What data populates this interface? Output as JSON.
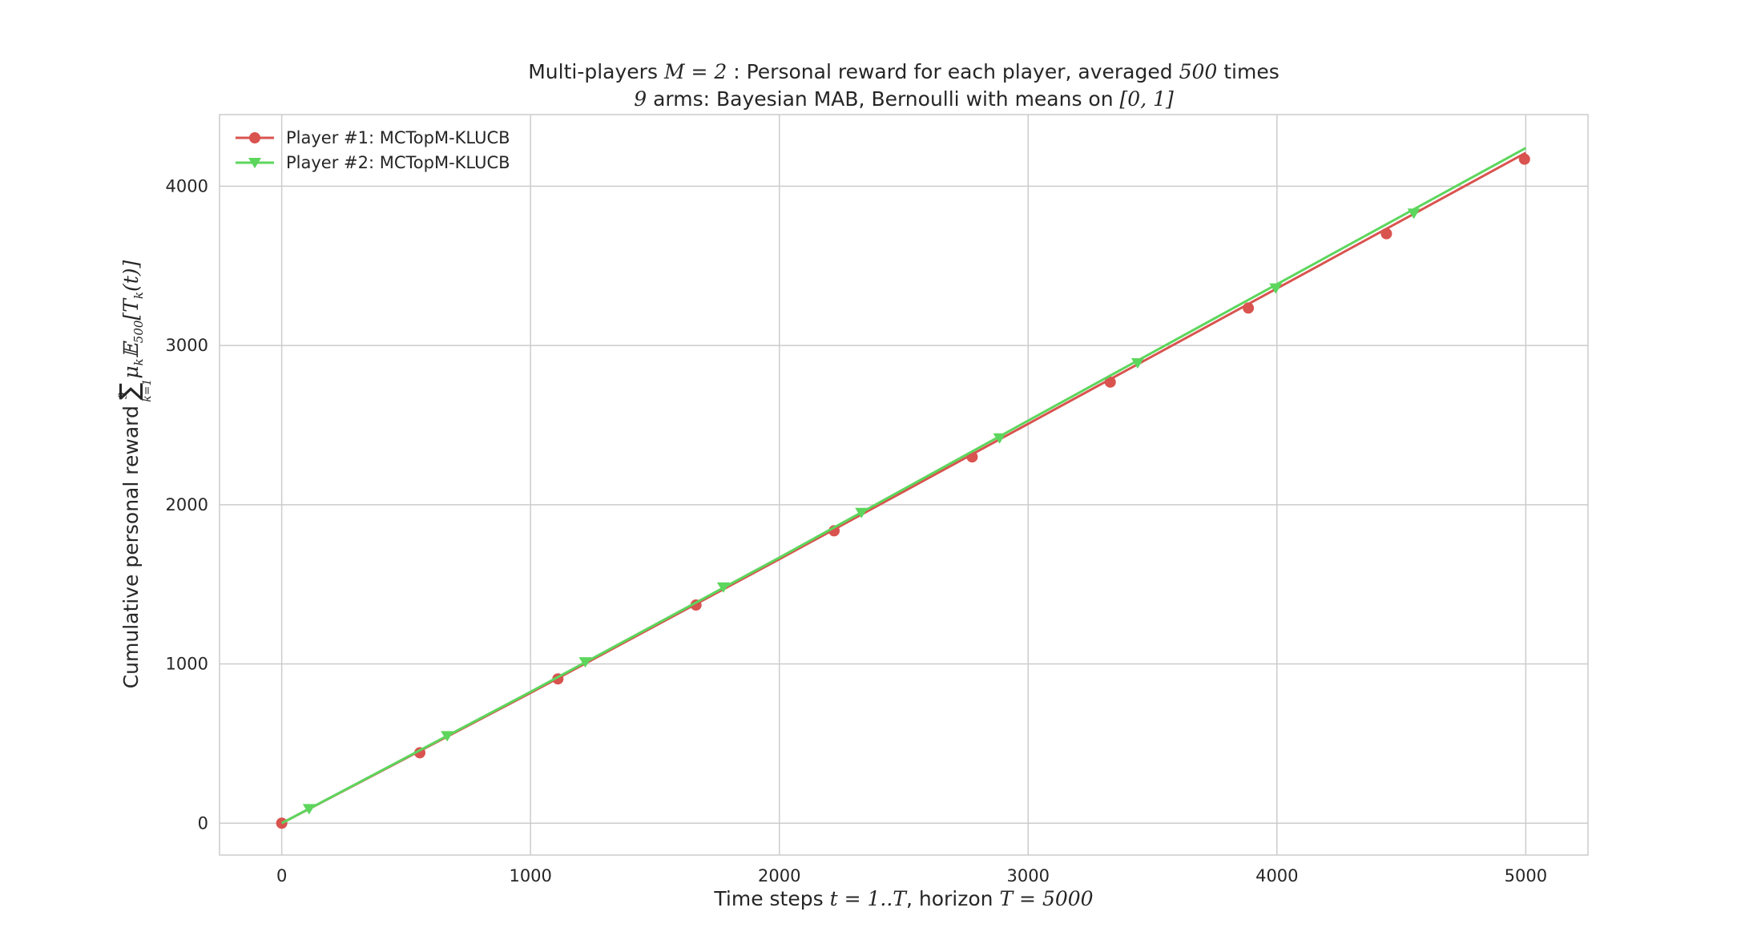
{
  "chart_data": {
    "type": "line",
    "title_line1": {
      "pre": "Multi-players ",
      "math1": "M = 2",
      "mid": " : Personal reward for each player, averaged ",
      "math2": "500",
      "post": " times"
    },
    "title_line2": {
      "math1": "9",
      "mid": " arms: Bayesian MAB, Bernoulli with means on ",
      "math2": "[0, 1]"
    },
    "xlabel": {
      "pre": "Time steps ",
      "math1": "t = 1..T",
      "mid": ", horizon ",
      "math2": "T = 5000"
    },
    "ylabel": {
      "text": "Cumulative personal reward ",
      "sum_top": "9",
      "sum_symbol": "∑",
      "sum_bottom": "k=1",
      "math": "μ",
      "math_sub": "k",
      "math2": "𝔼",
      "math2_sub": "500",
      "math3": "[T",
      "math3_sub": "k",
      "math3_post": "(t)]"
    },
    "xlim": [
      -250,
      5250
    ],
    "ylim": [
      -200,
      4450
    ],
    "xticks": [
      0,
      1000,
      2000,
      3000,
      4000,
      5000
    ],
    "xtick_labels": [
      "0",
      "1000",
      "2000",
      "3000",
      "4000",
      "5000"
    ],
    "yticks": [
      0,
      1000,
      2000,
      3000,
      4000
    ],
    "ytick_labels": [
      "0",
      "1000",
      "2000",
      "3000",
      "4000"
    ],
    "grid": true,
    "legend_position": "upper-left",
    "series": [
      {
        "name": "Player #1: MCTopM-KLUCB",
        "color": "#d9534f",
        "marker": "circle",
        "x": [
          0,
          1000,
          2000,
          3000,
          4000,
          5000
        ],
        "y": [
          0,
          818,
          1658,
          2508,
          3358,
          4210
        ],
        "marker_x": [
          0,
          555,
          1110,
          1665,
          2220,
          2775,
          3330,
          3885,
          4440,
          4995
        ],
        "marker_y": [
          0,
          442,
          906,
          1370,
          1836,
          2300,
          2770,
          3235,
          3702,
          4170
        ]
      },
      {
        "name": "Player #2: MCTopM-KLUCB",
        "color": "#5cd65c",
        "marker": "triangle-down",
        "x": [
          0,
          1000,
          2000,
          3000,
          4000,
          5000
        ],
        "y": [
          0,
          825,
          1668,
          2528,
          3385,
          4240
        ],
        "marker_x": [
          110,
          665,
          1220,
          1775,
          2330,
          2885,
          3440,
          3995,
          4550
        ],
        "marker_y": [
          90,
          548,
          1012,
          1482,
          1950,
          2418,
          2890,
          3360,
          3830
        ]
      }
    ]
  }
}
